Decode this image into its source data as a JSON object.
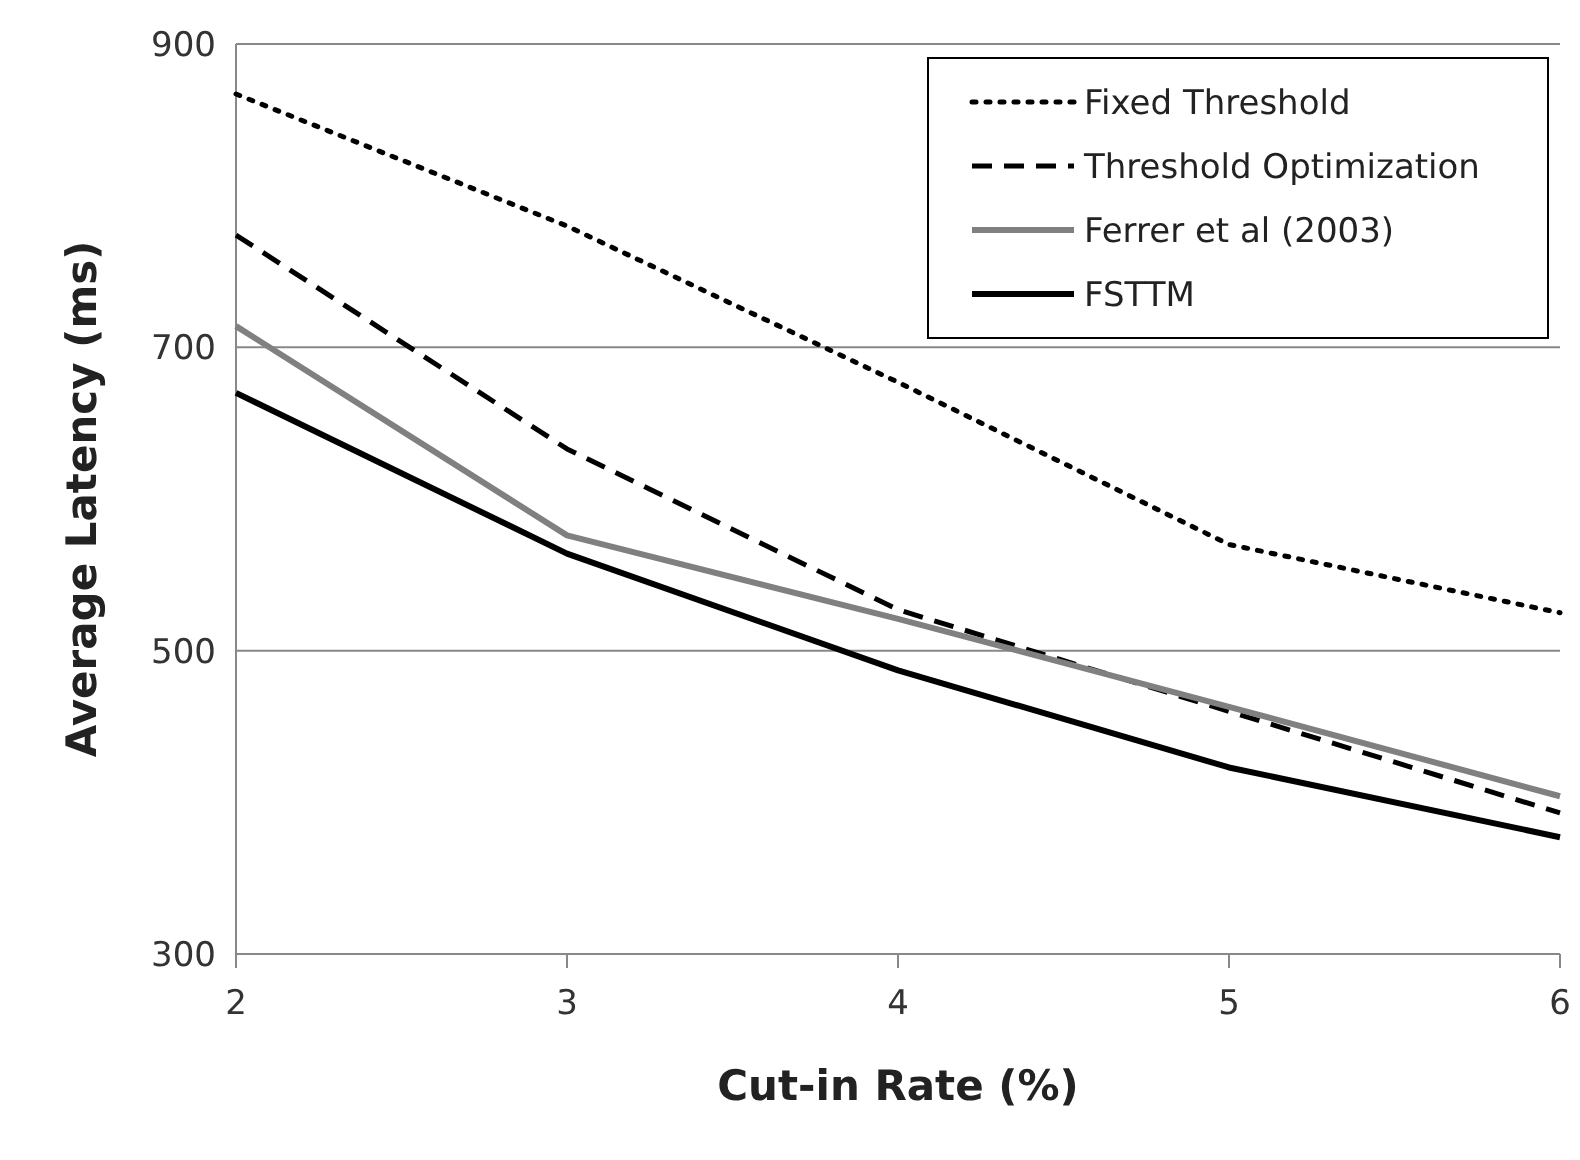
{
  "chart_data": {
    "type": "line",
    "xlabel": "Cut-in Rate (%)",
    "ylabel": "Average Latency (ms)",
    "x": [
      2,
      3,
      4,
      5,
      6
    ],
    "xlim": [
      2,
      6
    ],
    "xticks": [
      2,
      3,
      4,
      5,
      6
    ],
    "ylim": [
      300,
      900
    ],
    "yticks": [
      300,
      500,
      700,
      900
    ],
    "grid": "y",
    "legend": "top right",
    "marker": "none",
    "series": [
      {
        "name": "Fixed Threshold",
        "color": "#000000",
        "line_style": "dotted",
        "values": [
          867,
          780,
          677,
          570,
          525
        ]
      },
      {
        "name": "Threshold Optimization",
        "color": "#000000",
        "line_style": "dashed",
        "values": [
          774,
          633,
          527,
          460,
          393
        ]
      },
      {
        "name": "Ferrer et al (2003)",
        "color": "#808080",
        "line_style": "solid",
        "values": [
          714,
          576,
          521,
          463,
          404
        ]
      },
      {
        "name": "FSTTM",
        "color": "#000000",
        "line_style": "solid",
        "values": [
          670,
          564,
          487,
          423,
          377
        ]
      }
    ]
  }
}
